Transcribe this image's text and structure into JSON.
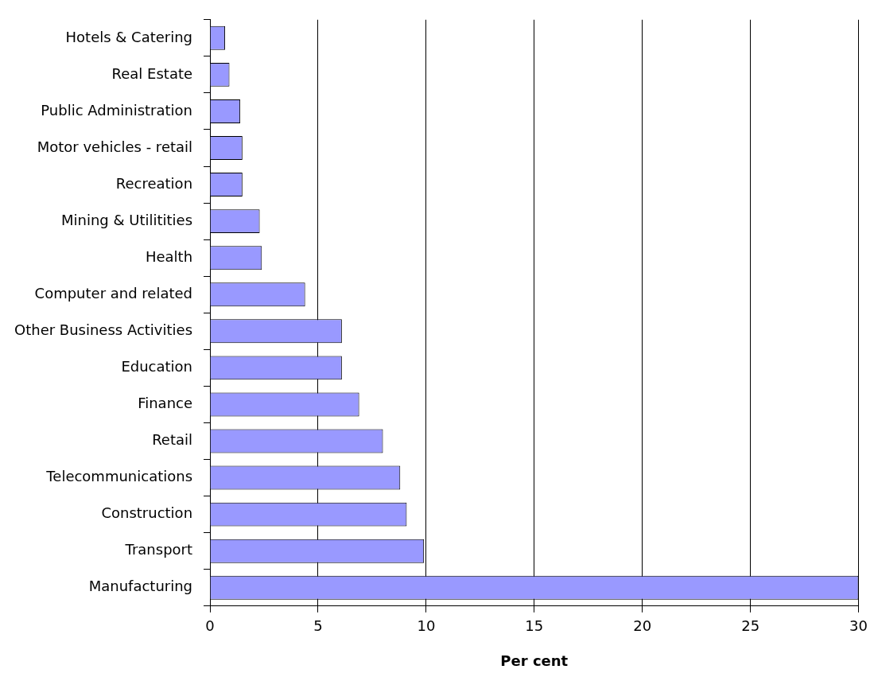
{
  "chart_data": {
    "type": "bar",
    "orientation": "horizontal",
    "xlabel": "Per cent",
    "categories": [
      "Hotels & Catering",
      "Real Estate",
      "Public Administration",
      "Motor vehicles - retail",
      "Recreation",
      "Mining & Utilitities",
      "Health",
      "Computer and related",
      "Other Business Activities",
      "Education",
      "Finance",
      "Retail",
      "Telecommunications",
      "Construction",
      "Transport",
      "Manufacturing"
    ],
    "values": [
      0.7,
      0.9,
      1.4,
      1.5,
      1.5,
      2.3,
      2.4,
      4.4,
      6.1,
      6.1,
      6.9,
      8.0,
      8.8,
      9.1,
      9.9,
      30
    ],
    "color": "#9999ff",
    "xlim": [
      0,
      30
    ],
    "xticks": [
      0,
      5,
      10,
      15,
      20,
      25,
      30
    ],
    "grid": "x",
    "legend": false
  }
}
